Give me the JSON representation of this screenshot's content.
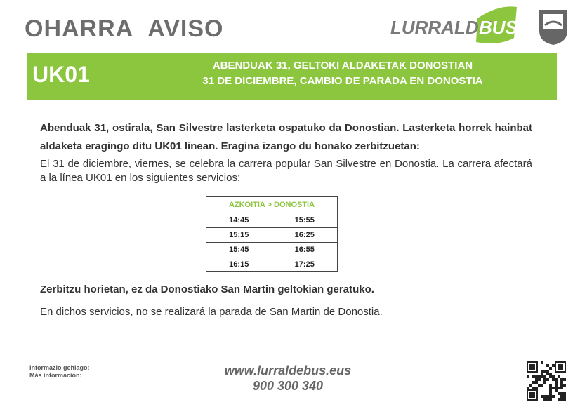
{
  "header": {
    "title_eu": "OHARRA",
    "title_es": "AVISO",
    "logo_part1": "LURRALDE",
    "logo_part2": "BUS"
  },
  "banner": {
    "code": "UK01",
    "line1": "ABENDUAK 31, GELTOKI ALDAKETAK DONOSTIAN",
    "line2": "31 DE DICIEMBRE, CAMBIO DE PARADA EN DONOSTIA"
  },
  "body": {
    "para_eu": "Abenduak 31, ostirala, San Silvestre lasterketa ospatuko da Donostian. Lasterketa horrek hainbat aldaketa eragingo ditu UK01 linean. Eragina izango du honako zerbitzuetan:",
    "para_es": "El 31 de diciembre, viernes, se celebra la carrera popular San Silvestre en Donostia. La carrera afectará a la línea UK01 en los siguientes servicios:",
    "note_eu": "Zerbitzu horietan, ez da Donostiako San Martin geltokian geratuko.",
    "note_es": "En dichos servicios, no se realizará la parada de San Martin de Donostia."
  },
  "table": {
    "header": "AZKOITIA > DONOSTIA",
    "rows": [
      [
        "14:45",
        "15:55"
      ],
      [
        "15:15",
        "16:25"
      ],
      [
        "15:45",
        "16:55"
      ],
      [
        "16:15",
        "17:25"
      ]
    ]
  },
  "footer": {
    "info_eu": "Informazio gehiago:",
    "info_es": "Más información:",
    "web": "www.lurraldebus.eus",
    "phone": "900 300 340"
  }
}
